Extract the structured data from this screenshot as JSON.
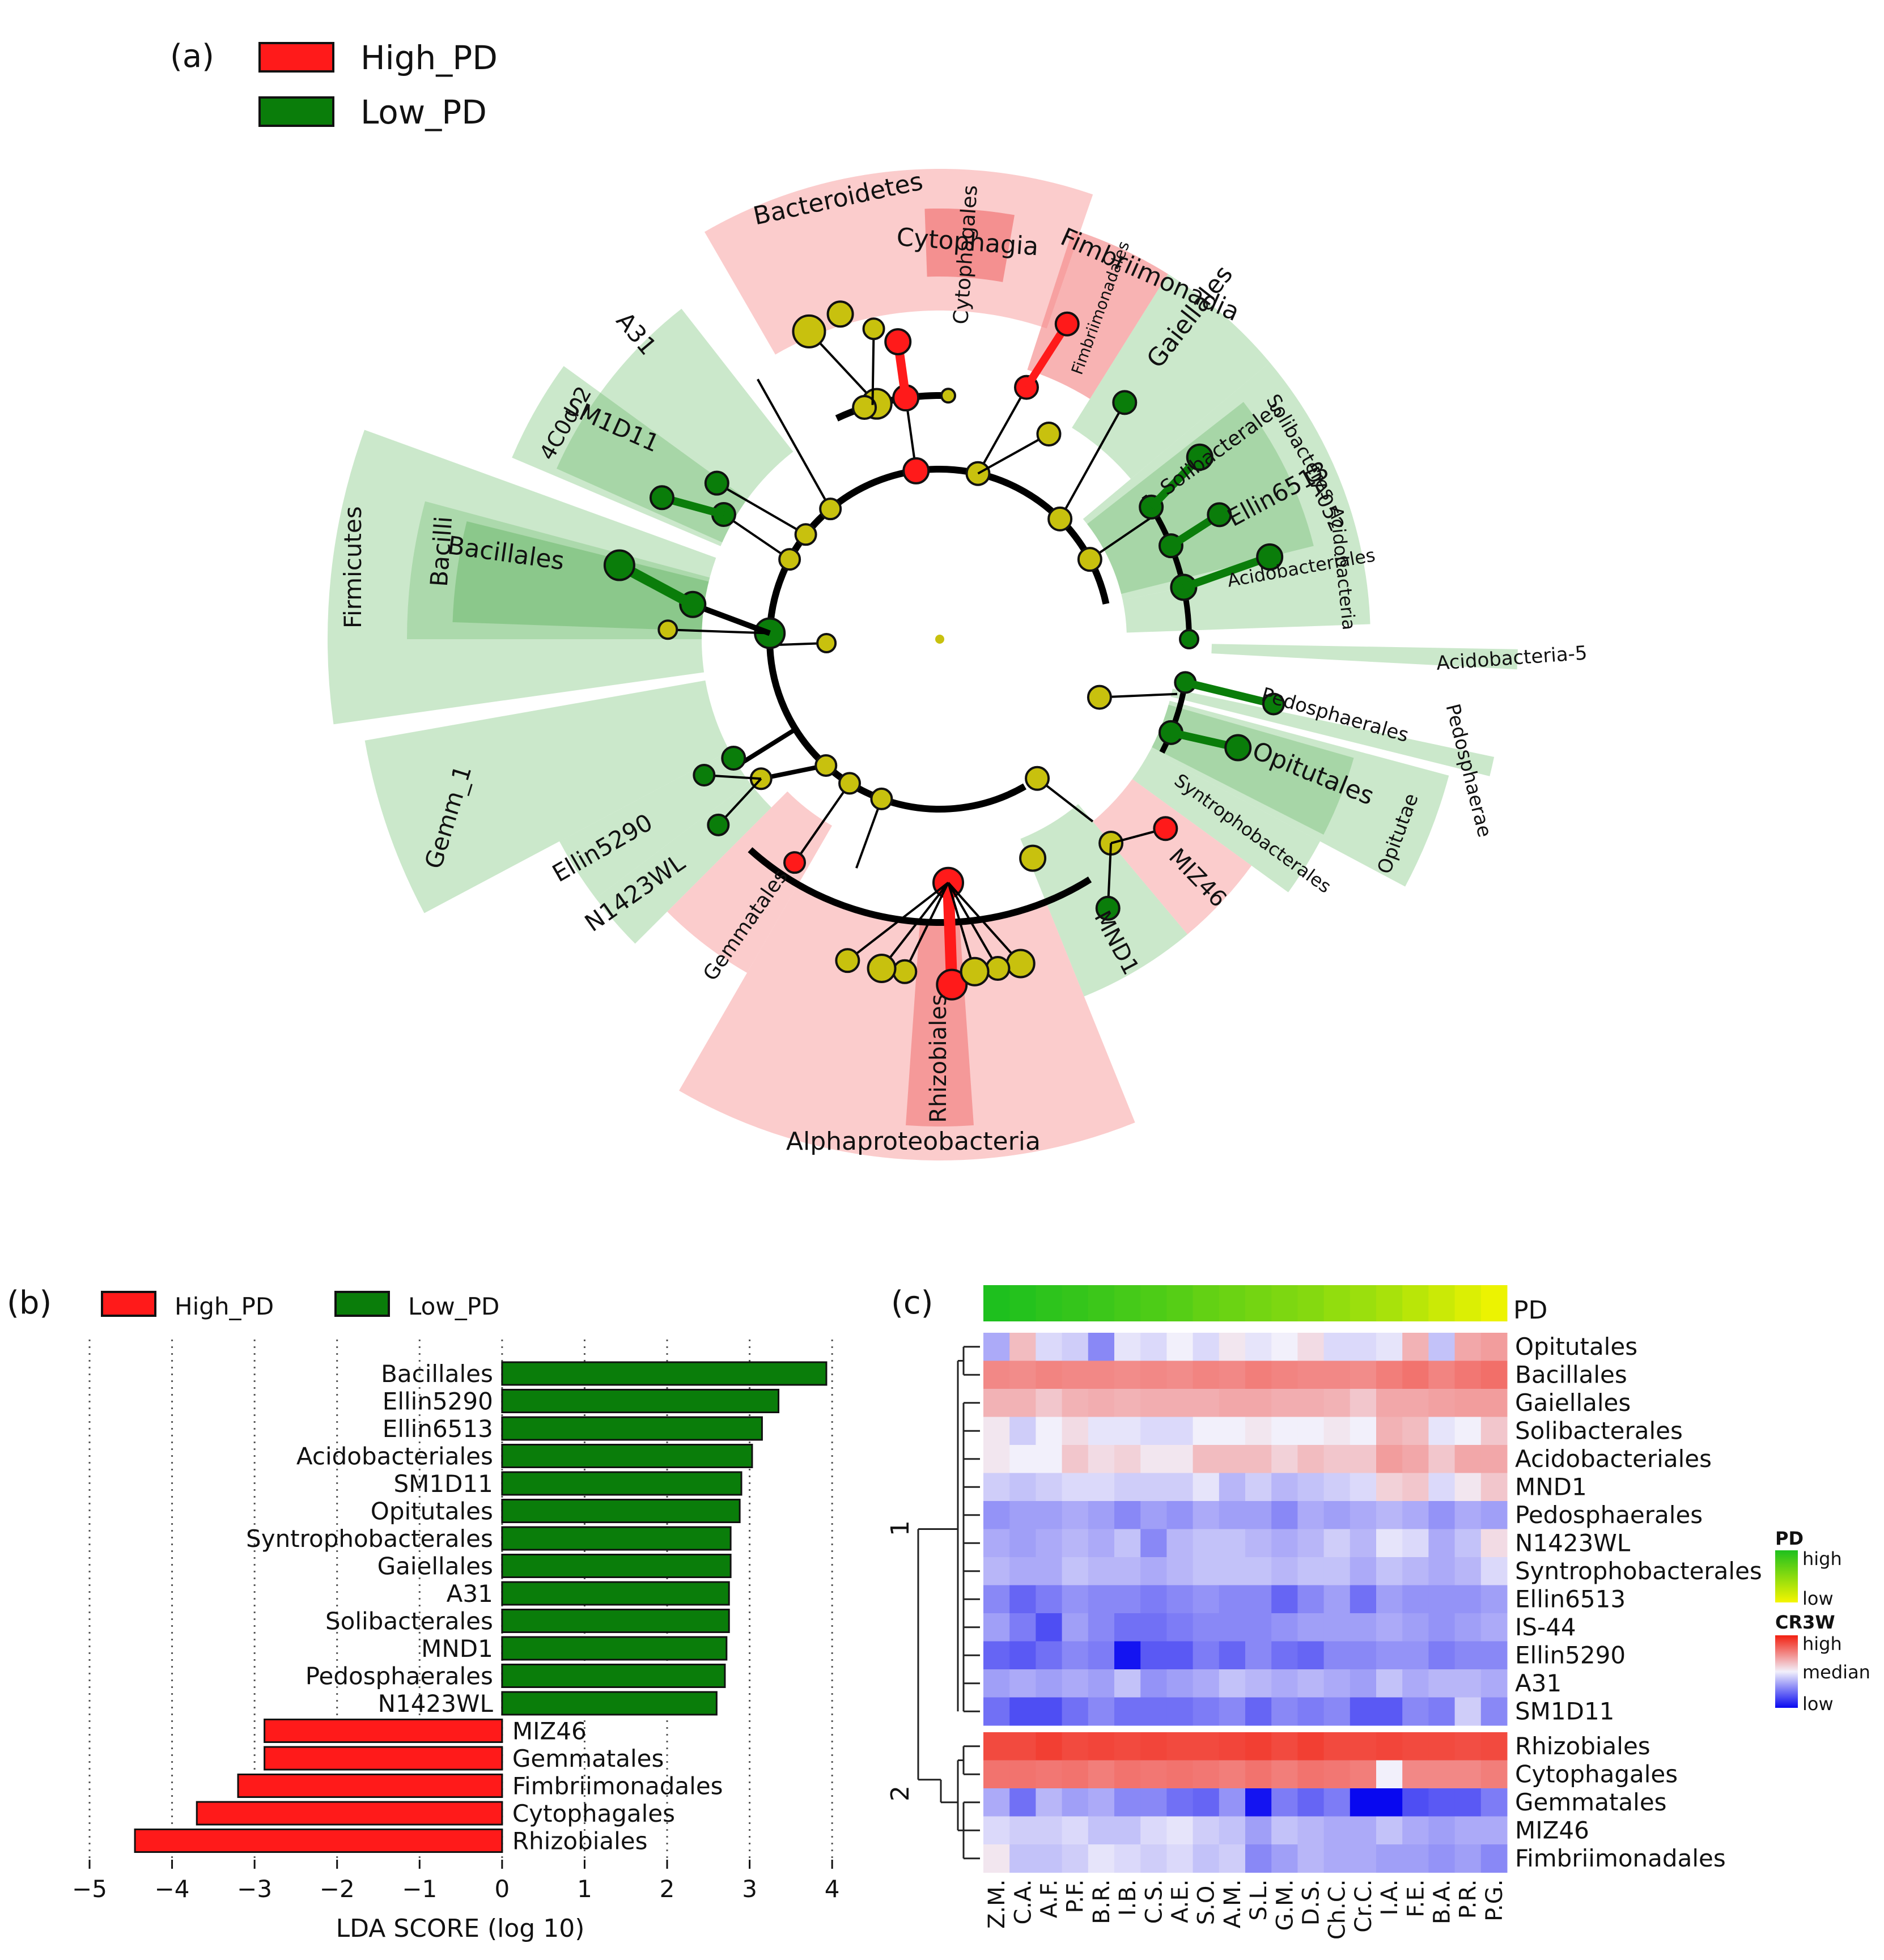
{
  "colors": {
    "high": "#ff1a1a",
    "low": "#0a7d0a",
    "high_bg": "#f9b0b0",
    "low_bg": "#a8d9a8",
    "node_neutral": "#c8c10e",
    "hm_high": "#f22010",
    "hm_median": "#f2f0fb",
    "hm_low": "#0808f0",
    "pd_high": "#1ec01e",
    "pd_low": "#f5f500"
  },
  "panel_a": {
    "label": "(a)",
    "legend": [
      {
        "label": "High_PD",
        "group": "high"
      },
      {
        "label": "Low_PD",
        "group": "low"
      }
    ],
    "clade_labels": [
      "Bacteroidetes",
      "Cytophagia",
      "Cytophagales",
      "Fimbriimonadia",
      "Fimbriimonadales",
      "Gaiellales",
      "Solibacteres",
      "Solibacterales",
      "DA052",
      "Ellin6513",
      "Acidobacteria",
      "Acidobacteriales",
      "Acidobacteria-5",
      "Pedosphaerae",
      "Pedosphaerales",
      "Opitutae",
      "Opitutales",
      "Syntrophobacterales",
      "MIZ46",
      "MND1",
      "Alphaproteobacteria",
      "Rhizobiales",
      "Gemmatales",
      "N1423WL",
      "Ellin5290",
      "Gemm_1",
      "Firmicutes",
      "Bacilli",
      "Bacillales",
      "4C0d_2",
      "SM1D11",
      "A31"
    ]
  },
  "chart_data": [
    {
      "type": "bar",
      "panel": "(b)",
      "orientation": "horizontal",
      "legend": [
        "High_PD",
        "Low_PD"
      ],
      "categories": [
        "Bacillales",
        "Ellin5290",
        "Ellin6513",
        "Acidobacteriales",
        "SM1D11",
        "Opitutales",
        "Syntrophobacterales",
        "Gaiellales",
        "A31",
        "Solibacterales",
        "MND1",
        "Pedosphaerales",
        "N1423WL",
        "MIZ46",
        "Gemmatales",
        "Fimbriimonadales",
        "Cytophagales",
        "Rhizobiales"
      ],
      "values": [
        3.93,
        3.35,
        3.15,
        3.03,
        2.9,
        2.88,
        2.77,
        2.77,
        2.75,
        2.75,
        2.72,
        2.7,
        2.6,
        -2.88,
        -2.88,
        -3.2,
        -3.7,
        -4.45
      ],
      "groups": [
        "low",
        "low",
        "low",
        "low",
        "low",
        "low",
        "low",
        "low",
        "low",
        "low",
        "low",
        "low",
        "low",
        "high",
        "high",
        "high",
        "high",
        "high"
      ],
      "xlabel": "LDA SCORE (log 10)",
      "xlim": [
        -5,
        4.15
      ],
      "xticks": [
        -5,
        -4,
        -3,
        -2,
        -1,
        0,
        1,
        2,
        3,
        4
      ],
      "xtick_labels": [
        "−5",
        "−4",
        "−3",
        "−2",
        "−1",
        "0",
        "1",
        "2",
        "3",
        "4"
      ],
      "grid": "vertical dotted"
    },
    {
      "type": "heatmap",
      "panel": "(c)",
      "columns": [
        "Z.M.",
        "C.A.",
        "A.F.",
        "P.F.",
        "B.R.",
        "I.B.",
        "C.S.",
        "A.E.",
        "S.O.",
        "A.M.",
        "S.L.",
        "G.M.",
        "D.S.",
        "Ch.C.",
        "Cr.C.",
        "I.A.",
        "F.E.",
        "B.A.",
        "P.R.",
        "P.G."
      ],
      "pd_bar_label": "PD",
      "pd_values": [
        1.0,
        0.97,
        0.93,
        0.9,
        0.86,
        0.82,
        0.78,
        0.74,
        0.68,
        0.64,
        0.6,
        0.56,
        0.52,
        0.46,
        0.42,
        0.36,
        0.28,
        0.2,
        0.12,
        0.04
      ],
      "cluster_labels": [
        "1",
        "2"
      ],
      "rows": [
        {
          "name": "Opitutales",
          "cluster": 1,
          "values": [
            -0.3,
            0.25,
            -0.1,
            -0.15,
            -0.45,
            -0.05,
            -0.1,
            0.0,
            -0.1,
            0.05,
            -0.05,
            0.0,
            0.1,
            -0.1,
            -0.1,
            -0.05,
            0.3,
            -0.2,
            0.35,
            0.4
          ]
        },
        {
          "name": "Bacillales",
          "cluster": 1,
          "values": [
            0.5,
            0.48,
            0.52,
            0.5,
            0.5,
            0.48,
            0.5,
            0.48,
            0.52,
            0.5,
            0.55,
            0.52,
            0.5,
            0.5,
            0.48,
            0.55,
            0.6,
            0.52,
            0.58,
            0.62
          ]
        },
        {
          "name": "Gaiellales",
          "cluster": 1,
          "values": [
            0.3,
            0.3,
            0.2,
            0.3,
            0.32,
            0.3,
            0.32,
            0.32,
            0.32,
            0.35,
            0.35,
            0.32,
            0.32,
            0.3,
            0.2,
            0.35,
            0.35,
            0.38,
            0.4,
            0.4
          ]
        },
        {
          "name": "Solibacterales",
          "cluster": 1,
          "values": [
            0.05,
            -0.15,
            0.0,
            0.1,
            -0.05,
            -0.05,
            -0.1,
            -0.1,
            0.0,
            0.0,
            0.05,
            0.0,
            0.0,
            0.05,
            0.0,
            0.3,
            0.25,
            -0.05,
            0.0,
            0.2
          ]
        },
        {
          "name": "Acidobacteriales",
          "cluster": 1,
          "values": [
            0.05,
            0.0,
            0.0,
            0.2,
            0.1,
            0.15,
            0.05,
            0.05,
            0.25,
            0.25,
            0.25,
            0.15,
            0.25,
            0.2,
            0.2,
            0.4,
            0.35,
            0.2,
            0.35,
            0.35
          ]
        },
        {
          "name": "MND1",
          "cluster": 1,
          "values": [
            -0.15,
            -0.2,
            -0.15,
            -0.1,
            -0.1,
            -0.15,
            -0.15,
            -0.15,
            -0.05,
            -0.25,
            -0.15,
            -0.25,
            -0.2,
            -0.15,
            -0.1,
            0.15,
            0.2,
            -0.1,
            0.05,
            0.2
          ]
        },
        {
          "name": "Pedosphaerales",
          "cluster": 1,
          "values": [
            -0.4,
            -0.35,
            -0.35,
            -0.3,
            -0.35,
            -0.45,
            -0.35,
            -0.4,
            -0.3,
            -0.35,
            -0.35,
            -0.45,
            -0.3,
            -0.35,
            -0.3,
            -0.25,
            -0.3,
            -0.4,
            -0.3,
            -0.35
          ]
        },
        {
          "name": "N1423WL",
          "cluster": 1,
          "values": [
            -0.3,
            -0.35,
            -0.3,
            -0.25,
            -0.3,
            -0.2,
            -0.45,
            -0.25,
            -0.2,
            -0.2,
            -0.25,
            -0.3,
            -0.25,
            -0.15,
            -0.25,
            -0.05,
            -0.1,
            -0.3,
            -0.2,
            0.1
          ]
        },
        {
          "name": "Syntrophobacterales",
          "cluster": 1,
          "values": [
            -0.25,
            -0.3,
            -0.3,
            -0.2,
            -0.25,
            -0.25,
            -0.3,
            -0.25,
            -0.2,
            -0.2,
            -0.2,
            -0.25,
            -0.2,
            -0.2,
            -0.3,
            -0.2,
            -0.25,
            -0.3,
            -0.25,
            -0.1
          ]
        },
        {
          "name": "Ellin6513",
          "cluster": 1,
          "values": [
            -0.45,
            -0.6,
            -0.5,
            -0.4,
            -0.45,
            -0.45,
            -0.5,
            -0.45,
            -0.4,
            -0.45,
            -0.45,
            -0.6,
            -0.45,
            -0.35,
            -0.55,
            -0.35,
            -0.4,
            -0.4,
            -0.4,
            -0.35
          ]
        },
        {
          "name": "IS-44",
          "cluster": 1,
          "values": [
            -0.35,
            -0.5,
            -0.7,
            -0.35,
            -0.45,
            -0.55,
            -0.55,
            -0.5,
            -0.45,
            -0.45,
            -0.45,
            -0.4,
            -0.35,
            -0.35,
            -0.35,
            -0.3,
            -0.35,
            -0.4,
            -0.35,
            -0.3
          ]
        },
        {
          "name": "Ellin5290",
          "cluster": 1,
          "values": [
            -0.6,
            -0.65,
            -0.55,
            -0.45,
            -0.5,
            -0.95,
            -0.65,
            -0.65,
            -0.5,
            -0.6,
            -0.45,
            -0.55,
            -0.6,
            -0.45,
            -0.45,
            -0.4,
            -0.4,
            -0.5,
            -0.45,
            -0.45
          ]
        },
        {
          "name": "A31",
          "cluster": 1,
          "values": [
            -0.35,
            -0.3,
            -0.35,
            -0.3,
            -0.35,
            -0.2,
            -0.4,
            -0.35,
            -0.3,
            -0.2,
            -0.25,
            -0.3,
            -0.25,
            -0.3,
            -0.35,
            -0.2,
            -0.3,
            -0.25,
            -0.25,
            -0.3
          ]
        },
        {
          "name": "SM1D11",
          "cluster": 1,
          "values": [
            -0.55,
            -0.7,
            -0.7,
            -0.55,
            -0.45,
            -0.55,
            -0.55,
            -0.55,
            -0.5,
            -0.45,
            -0.6,
            -0.45,
            -0.5,
            -0.45,
            -0.65,
            -0.65,
            -0.45,
            -0.5,
            -0.15,
            -0.45
          ]
        },
        {
          "name": "Rhizobiales",
          "cluster": 2,
          "values": [
            0.8,
            0.8,
            0.85,
            0.8,
            0.82,
            0.8,
            0.82,
            0.8,
            0.8,
            0.82,
            0.85,
            0.8,
            0.85,
            0.8,
            0.8,
            0.82,
            0.8,
            0.8,
            0.78,
            0.8
          ]
        },
        {
          "name": "Cytophagales",
          "cluster": 2,
          "values": [
            0.6,
            0.6,
            0.58,
            0.6,
            0.55,
            0.6,
            0.58,
            0.6,
            0.58,
            0.55,
            0.6,
            0.55,
            0.6,
            0.58,
            0.55,
            0.0,
            0.5,
            0.5,
            0.5,
            0.55
          ]
        },
        {
          "name": "Gemmatales",
          "cluster": 2,
          "values": [
            -0.3,
            -0.55,
            -0.25,
            -0.35,
            -0.3,
            -0.45,
            -0.45,
            -0.55,
            -0.6,
            -0.4,
            -0.95,
            -0.5,
            -0.6,
            -0.5,
            -1.0,
            -1.0,
            -0.7,
            -0.65,
            -0.65,
            -0.5
          ]
        },
        {
          "name": "MIZ46",
          "cluster": 2,
          "values": [
            -0.1,
            -0.15,
            -0.15,
            -0.1,
            -0.2,
            -0.2,
            -0.1,
            -0.05,
            -0.15,
            -0.2,
            -0.35,
            -0.2,
            -0.25,
            -0.3,
            -0.3,
            -0.2,
            -0.3,
            -0.35,
            -0.3,
            -0.3
          ]
        },
        {
          "name": "Fimbriimonadales",
          "cluster": 2,
          "values": [
            0.05,
            -0.2,
            -0.2,
            -0.15,
            -0.05,
            -0.1,
            -0.15,
            -0.1,
            -0.2,
            -0.15,
            -0.45,
            -0.35,
            -0.25,
            -0.3,
            -0.3,
            -0.35,
            -0.35,
            -0.4,
            -0.35,
            -0.45
          ]
        }
      ],
      "legend_pd": {
        "title": "PD",
        "high": "high",
        "low": "low"
      },
      "legend_value": {
        "title": "CR3W",
        "high": "high",
        "median": "median",
        "low": "low"
      }
    }
  ],
  "panel_labels": {
    "b": "(b)",
    "c": "(c)"
  }
}
